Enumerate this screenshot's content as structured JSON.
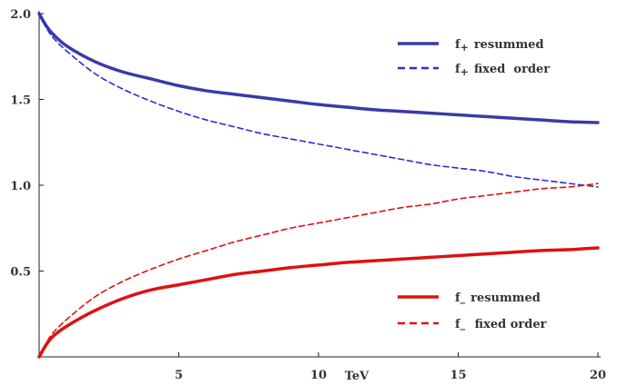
{
  "chart_data": {
    "type": "line",
    "xlabel": "TeV",
    "ylabel": "",
    "xlim": [
      0,
      20
    ],
    "ylim": [
      0,
      2.0
    ],
    "x_ticks": [
      "5",
      "10",
      "15",
      "20"
    ],
    "y_ticks": [
      "0.5",
      "1.0",
      "1.5",
      "2.0"
    ],
    "grid": false,
    "legend_placement": "right",
    "x": [
      0,
      0.25,
      0.5,
      1,
      2,
      3,
      4,
      5,
      6,
      7,
      8,
      9,
      10,
      11,
      12,
      13,
      14,
      15,
      16,
      17,
      18,
      19,
      20
    ],
    "series": [
      {
        "name": "resummed",
        "name_subscript": "+",
        "color": "#3a3aa8",
        "style": "solid",
        "values": [
          2.0,
          1.93,
          1.88,
          1.81,
          1.72,
          1.66,
          1.62,
          1.58,
          1.55,
          1.53,
          1.51,
          1.49,
          1.47,
          1.455,
          1.44,
          1.43,
          1.42,
          1.41,
          1.4,
          1.39,
          1.38,
          1.37,
          1.365
        ]
      },
      {
        "name": "fixed  order",
        "name_subscript": "+",
        "color": "#2b2bd6",
        "style": "dashed",
        "values": [
          2.0,
          1.92,
          1.86,
          1.78,
          1.65,
          1.56,
          1.49,
          1.43,
          1.38,
          1.34,
          1.3,
          1.27,
          1.24,
          1.21,
          1.18,
          1.15,
          1.12,
          1.1,
          1.08,
          1.05,
          1.03,
          1.01,
          0.99
        ]
      },
      {
        "name": "resummed",
        "name_subscript": "_",
        "color": "#e01010",
        "style": "solid",
        "values": [
          0.0,
          0.07,
          0.12,
          0.18,
          0.27,
          0.34,
          0.39,
          0.42,
          0.45,
          0.48,
          0.5,
          0.52,
          0.535,
          0.55,
          0.56,
          0.57,
          0.58,
          0.59,
          0.6,
          0.61,
          0.62,
          0.625,
          0.635
        ]
      },
      {
        "name": "fixed order",
        "name_subscript": "_",
        "color": "#e01010",
        "style": "dashed",
        "values": [
          0.0,
          0.08,
          0.14,
          0.22,
          0.35,
          0.44,
          0.51,
          0.57,
          0.62,
          0.67,
          0.71,
          0.75,
          0.78,
          0.81,
          0.84,
          0.87,
          0.89,
          0.92,
          0.94,
          0.96,
          0.98,
          0.99,
          1.01
        ]
      }
    ]
  },
  "legend": [
    {
      "prefix": "f",
      "sub": "+",
      "text": "resummed"
    },
    {
      "prefix": "f",
      "sub": "+",
      "text": "fixed  order"
    },
    {
      "prefix": "f",
      "sub": "_",
      "text": "resummed"
    },
    {
      "prefix": "f",
      "sub": "_",
      "text": " fixed order"
    }
  ]
}
